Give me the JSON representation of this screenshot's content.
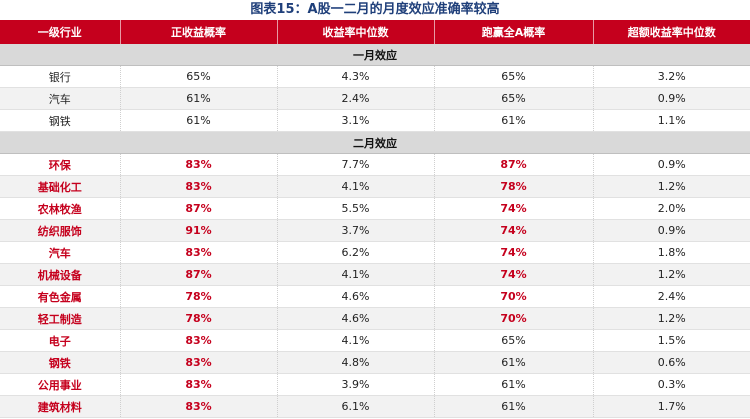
{
  "title": "图表15：A股一二月的月度效应准确率较高",
  "headers": [
    "一级行业",
    "正收益概率",
    "收益率中位数",
    "跑赢全A概率",
    "超额收益率中位数"
  ],
  "sections": [
    {
      "label": "一月效应",
      "rows": [
        {
          "industry": "银行",
          "pos_prob": "65%",
          "median": "4.3%",
          "beat_prob": "65%",
          "excess": "3.2%",
          "industry_red": false,
          "pos_red": false,
          "beat_red": false
        },
        {
          "industry": "汽车",
          "pos_prob": "61%",
          "median": "2.4%",
          "beat_prob": "65%",
          "excess": "0.9%",
          "industry_red": false,
          "pos_red": false,
          "beat_red": false
        },
        {
          "industry": "钢铁",
          "pos_prob": "61%",
          "median": "3.1%",
          "beat_prob": "61%",
          "excess": "1.1%",
          "industry_red": false,
          "pos_red": false,
          "beat_red": false
        }
      ]
    },
    {
      "label": "二月效应",
      "rows": [
        {
          "industry": "环保",
          "pos_prob": "83%",
          "median": "7.7%",
          "beat_prob": "87%",
          "excess": "0.9%",
          "industry_red": true,
          "pos_red": true,
          "beat_red": true
        },
        {
          "industry": "基础化工",
          "pos_prob": "83%",
          "median": "4.1%",
          "beat_prob": "78%",
          "excess": "1.2%",
          "industry_red": true,
          "pos_red": true,
          "beat_red": true
        },
        {
          "industry": "农林牧渔",
          "pos_prob": "87%",
          "median": "5.5%",
          "beat_prob": "74%",
          "excess": "2.0%",
          "industry_red": true,
          "pos_red": true,
          "beat_red": true
        },
        {
          "industry": "纺织服饰",
          "pos_prob": "91%",
          "median": "3.7%",
          "beat_prob": "74%",
          "excess": "0.9%",
          "industry_red": true,
          "pos_red": true,
          "beat_red": true
        },
        {
          "industry": "汽车",
          "pos_prob": "83%",
          "median": "6.2%",
          "beat_prob": "74%",
          "excess": "1.8%",
          "industry_red": true,
          "pos_red": true,
          "beat_red": true
        },
        {
          "industry": "机械设备",
          "pos_prob": "87%",
          "median": "4.1%",
          "beat_prob": "74%",
          "excess": "1.2%",
          "industry_red": true,
          "pos_red": true,
          "beat_red": true
        },
        {
          "industry": "有色金属",
          "pos_prob": "78%",
          "median": "4.6%",
          "beat_prob": "70%",
          "excess": "2.4%",
          "industry_red": true,
          "pos_red": true,
          "beat_red": true
        },
        {
          "industry": "轻工制造",
          "pos_prob": "78%",
          "median": "4.6%",
          "beat_prob": "70%",
          "excess": "1.2%",
          "industry_red": true,
          "pos_red": true,
          "beat_red": true
        },
        {
          "industry": "电子",
          "pos_prob": "83%",
          "median": "4.1%",
          "beat_prob": "65%",
          "excess": "1.5%",
          "industry_red": true,
          "pos_red": true,
          "beat_red": false
        },
        {
          "industry": "钢铁",
          "pos_prob": "83%",
          "median": "4.8%",
          "beat_prob": "61%",
          "excess": "0.6%",
          "industry_red": true,
          "pos_red": true,
          "beat_red": false
        },
        {
          "industry": "公用事业",
          "pos_prob": "83%",
          "median": "3.9%",
          "beat_prob": "61%",
          "excess": "0.3%",
          "industry_red": true,
          "pos_red": true,
          "beat_red": false
        },
        {
          "industry": "建筑材料",
          "pos_prob": "83%",
          "median": "6.1%",
          "beat_prob": "61%",
          "excess": "1.7%",
          "industry_red": true,
          "pos_red": true,
          "beat_red": false
        }
      ]
    }
  ],
  "colors": {
    "header_bg": "#c5001d",
    "highlight_text": "#c5001d",
    "title_text": "#1f3f7a",
    "section_bg": "#d9d9d9",
    "stripe_bg": "#f2f2f2"
  }
}
